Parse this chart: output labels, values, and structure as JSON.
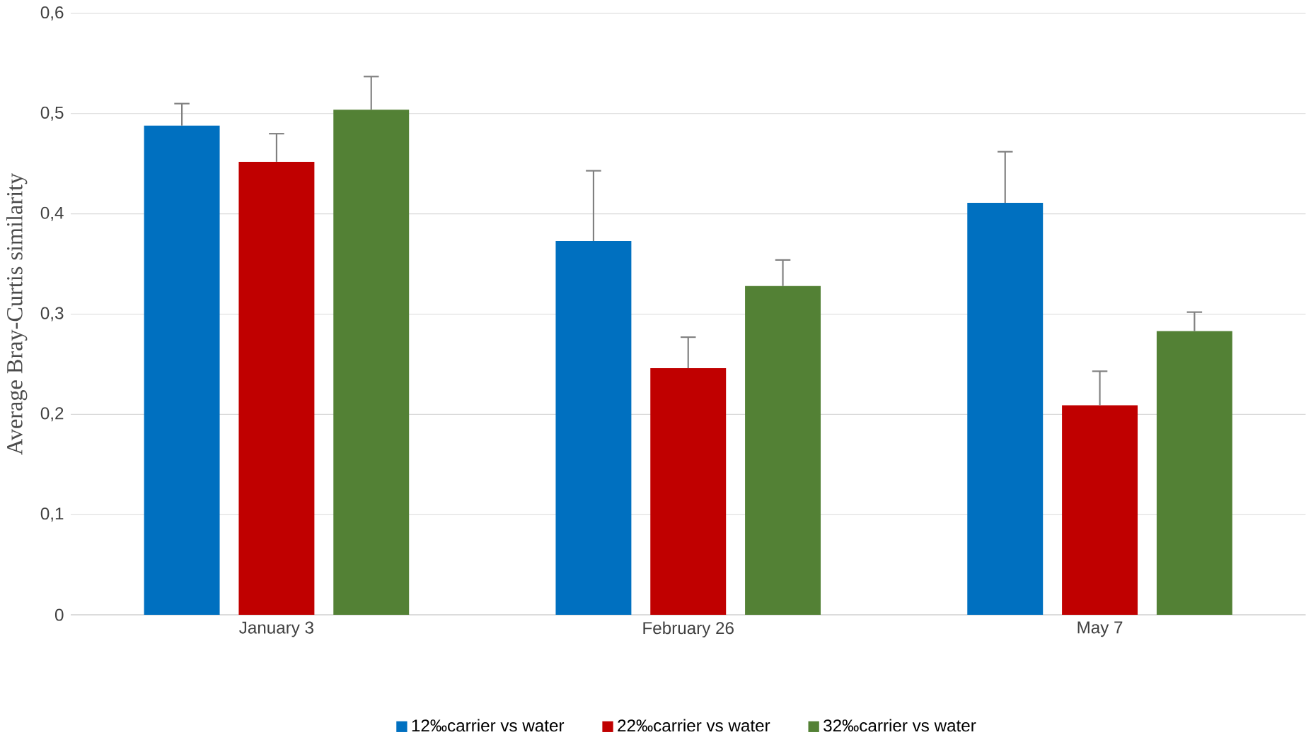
{
  "chart_data": {
    "type": "bar",
    "ylabel": "Average Bray-Curtis similarity",
    "categories": [
      "January 3",
      "February 26",
      "May 7"
    ],
    "series": [
      {
        "name": "12‰carrier vs water",
        "color": "#0070c0",
        "values": [
          0.488,
          0.373,
          0.411
        ],
        "errors": [
          0.022,
          0.07,
          0.051
        ]
      },
      {
        "name": "22‰carrier vs water",
        "color": "#c00000",
        "values": [
          0.452,
          0.246,
          0.209
        ],
        "errors": [
          0.028,
          0.031,
          0.034
        ]
      },
      {
        "name": "32‰carrier vs water",
        "color": "#538135",
        "values": [
          0.504,
          0.328,
          0.283
        ],
        "errors": [
          0.033,
          0.026,
          0.019
        ]
      }
    ],
    "ylim": [
      0,
      0.6
    ],
    "yticks": [
      {
        "value": 0,
        "label": "0"
      },
      {
        "value": 0.1,
        "label": "0,1"
      },
      {
        "value": 0.2,
        "label": "0,2"
      },
      {
        "value": 0.3,
        "label": "0,3"
      },
      {
        "value": 0.4,
        "label": "0,4"
      },
      {
        "value": 0.5,
        "label": "0,5"
      },
      {
        "value": 0.6,
        "label": "0,6"
      }
    ],
    "grid": "y",
    "legend": "bottom"
  }
}
